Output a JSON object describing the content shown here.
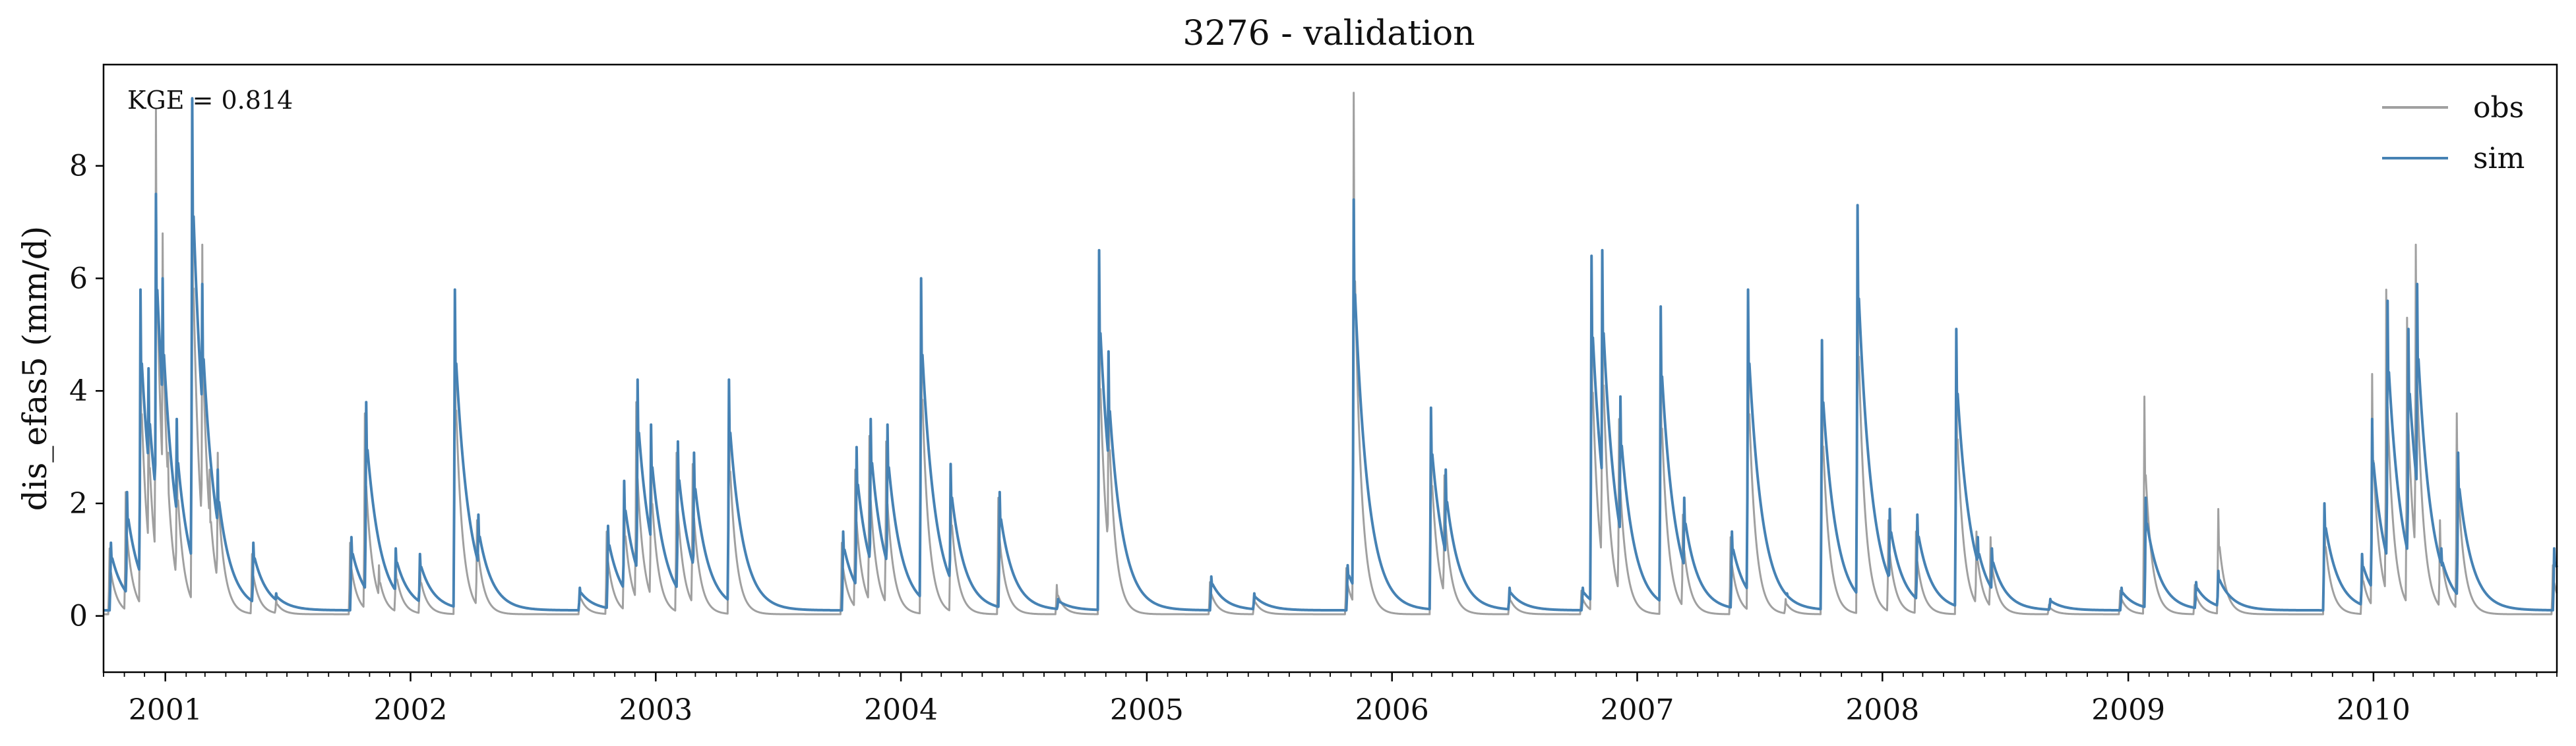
{
  "chart_data": {
    "type": "line",
    "title": "3276 - validation",
    "xlabel": "",
    "ylabel": "dis_efas5 (mm/d)",
    "annotation": "KGE = 0.814",
    "x_range": [
      "2000-10-01",
      "2010-10-01"
    ],
    "ylim": [
      -1.0,
      9.8
    ],
    "yticks": [
      0,
      2,
      4,
      6,
      8
    ],
    "xtick_labels": [
      "2001",
      "2002",
      "2003",
      "2004",
      "2005",
      "2006",
      "2007",
      "2008",
      "2009",
      "2010"
    ],
    "grid": false,
    "legend_position": "top-right",
    "baseline": 0.12,
    "series": [
      {
        "name": "obs",
        "color": "#a0a0a0",
        "baseline": 0.03,
        "recession_days": 10,
        "scale": 0.78,
        "events": [
          [
            "2000-10-10",
            1.2
          ],
          [
            "2000-11-03",
            2.2
          ],
          [
            "2000-11-25",
            5.6
          ],
          [
            "2000-12-07",
            4.1
          ],
          [
            "2000-12-18",
            9.0
          ],
          [
            "2000-12-28",
            6.8
          ],
          [
            "2001-01-05",
            2.9
          ],
          [
            "2001-01-18",
            3.2
          ],
          [
            "2001-02-10",
            9.1
          ],
          [
            "2001-02-25",
            6.6
          ],
          [
            "2001-03-08",
            2.6
          ],
          [
            "2001-03-20",
            2.9
          ],
          [
            "2001-05-10",
            1.1
          ],
          [
            "2001-06-15",
            0.3
          ],
          [
            "2001-10-03",
            1.3
          ],
          [
            "2001-10-25",
            3.6
          ],
          [
            "2001-11-15",
            0.9
          ],
          [
            "2001-12-10",
            1.0
          ],
          [
            "2002-01-15",
            0.9
          ],
          [
            "2002-03-08",
            5.7
          ],
          [
            "2002-04-10",
            1.7
          ],
          [
            "2002-09-10",
            0.45
          ],
          [
            "2002-10-20",
            1.5
          ],
          [
            "2002-11-15",
            2.2
          ],
          [
            "2002-12-03",
            3.8
          ],
          [
            "2002-12-25",
            3.1
          ],
          [
            "2003-02-01",
            2.9
          ],
          [
            "2003-02-25",
            2.7
          ],
          [
            "2003-04-20",
            4.0
          ],
          [
            "2003-10-05",
            1.3
          ],
          [
            "2003-10-25",
            2.6
          ],
          [
            "2003-11-15",
            3.2
          ],
          [
            "2003-12-10",
            3.1
          ],
          [
            "2004-01-31",
            6.0
          ],
          [
            "2004-03-15",
            2.5
          ],
          [
            "2004-05-25",
            2.1
          ],
          [
            "2004-08-20",
            0.55
          ],
          [
            "2004-10-22",
            6.3
          ],
          [
            "2004-11-05",
            4.6
          ],
          [
            "2005-04-05",
            0.6
          ],
          [
            "2005-06-10",
            0.35
          ],
          [
            "2005-10-25",
            0.85
          ],
          [
            "2005-11-05",
            9.3
          ],
          [
            "2006-02-28",
            3.6
          ],
          [
            "2006-03-20",
            2.5
          ],
          [
            "2006-06-25",
            0.4
          ],
          [
            "2006-10-10",
            0.45
          ],
          [
            "2006-10-25",
            6.2
          ],
          [
            "2006-11-10",
            6.4
          ],
          [
            "2006-12-05",
            3.5
          ],
          [
            "2007-02-05",
            5.2
          ],
          [
            "2007-03-10",
            1.8
          ],
          [
            "2007-05-20",
            1.4
          ],
          [
            "2007-06-15",
            5.6
          ],
          [
            "2007-08-10",
            0.3
          ],
          [
            "2007-10-03",
            4.7
          ],
          [
            "2007-11-25",
            7.2
          ],
          [
            "2008-01-10",
            1.7
          ],
          [
            "2008-02-20",
            1.5
          ],
          [
            "2008-04-20",
            4.9
          ],
          [
            "2008-05-20",
            1.5
          ],
          [
            "2008-06-10",
            1.4
          ],
          [
            "2008-09-05",
            0.2
          ],
          [
            "2008-12-20",
            0.45
          ],
          [
            "2009-01-25",
            3.9
          ],
          [
            "2009-04-10",
            0.55
          ],
          [
            "2009-05-15",
            1.9
          ],
          [
            "2009-10-20",
            1.9
          ],
          [
            "2009-12-15",
            0.95
          ],
          [
            "2009-12-30",
            4.3
          ],
          [
            "2010-01-20",
            5.8
          ],
          [
            "2010-02-20",
            5.3
          ],
          [
            "2010-03-05",
            6.6
          ],
          [
            "2010-04-10",
            1.7
          ],
          [
            "2010-05-05",
            3.6
          ],
          [
            "2010-09-25",
            0.9
          ]
        ]
      },
      {
        "name": "sim",
        "color": "#4682b4",
        "baseline": 0.1,
        "recession_days": 20,
        "scale": 0.85,
        "events": [
          [
            "2000-10-12",
            1.3
          ],
          [
            "2000-11-05",
            2.2
          ],
          [
            "2000-11-25",
            5.8
          ],
          [
            "2000-12-07",
            4.4
          ],
          [
            "2000-12-18",
            7.5
          ],
          [
            "2000-12-28",
            6.0
          ],
          [
            "2001-01-05",
            3.4
          ],
          [
            "2001-01-18",
            3.5
          ],
          [
            "2001-02-10",
            9.2
          ],
          [
            "2001-02-25",
            5.9
          ],
          [
            "2001-03-08",
            2.8
          ],
          [
            "2001-03-20",
            2.6
          ],
          [
            "2001-05-12",
            1.3
          ],
          [
            "2001-06-15",
            0.4
          ],
          [
            "2001-10-05",
            1.4
          ],
          [
            "2001-10-27",
            3.8
          ],
          [
            "2001-11-15",
            1.0
          ],
          [
            "2001-12-10",
            1.2
          ],
          [
            "2002-01-15",
            1.1
          ],
          [
            "2002-03-08",
            5.8
          ],
          [
            "2002-04-12",
            1.8
          ],
          [
            "2002-09-10",
            0.5
          ],
          [
            "2002-10-22",
            1.6
          ],
          [
            "2002-11-15",
            2.4
          ],
          [
            "2002-12-05",
            4.2
          ],
          [
            "2002-12-25",
            3.4
          ],
          [
            "2003-02-03",
            3.1
          ],
          [
            "2003-02-27",
            2.9
          ],
          [
            "2003-04-20",
            4.2
          ],
          [
            "2003-10-07",
            1.5
          ],
          [
            "2003-10-27",
            3.0
          ],
          [
            "2003-11-17",
            3.5
          ],
          [
            "2003-12-12",
            3.4
          ],
          [
            "2004-01-31",
            6.0
          ],
          [
            "2004-03-15",
            2.7
          ],
          [
            "2004-05-27",
            2.2
          ],
          [
            "2004-08-22",
            0.3
          ],
          [
            "2004-10-22",
            6.5
          ],
          [
            "2004-11-05",
            4.7
          ],
          [
            "2005-04-07",
            0.7
          ],
          [
            "2005-06-10",
            0.4
          ],
          [
            "2005-10-27",
            0.9
          ],
          [
            "2005-11-05",
            7.4
          ],
          [
            "2006-02-28",
            3.7
          ],
          [
            "2006-03-22",
            2.6
          ],
          [
            "2006-06-25",
            0.5
          ],
          [
            "2006-10-12",
            0.5
          ],
          [
            "2006-10-25",
            6.4
          ],
          [
            "2006-11-10",
            6.5
          ],
          [
            "2006-12-07",
            3.9
          ],
          [
            "2007-02-05",
            5.5
          ],
          [
            "2007-03-12",
            2.1
          ],
          [
            "2007-05-22",
            1.5
          ],
          [
            "2007-06-15",
            5.8
          ],
          [
            "2007-08-12",
            0.4
          ],
          [
            "2007-10-03",
            4.9
          ],
          [
            "2007-11-25",
            7.3
          ],
          [
            "2008-01-12",
            1.9
          ],
          [
            "2008-02-22",
            1.8
          ],
          [
            "2008-04-20",
            5.1
          ],
          [
            "2008-05-22",
            1.4
          ],
          [
            "2008-06-12",
            1.2
          ],
          [
            "2008-09-07",
            0.3
          ],
          [
            "2008-12-22",
            0.5
          ],
          [
            "2009-01-27",
            2.1
          ],
          [
            "2009-04-12",
            0.6
          ],
          [
            "2009-05-15",
            0.8
          ],
          [
            "2009-10-20",
            2.0
          ],
          [
            "2009-12-15",
            1.1
          ],
          [
            "2009-12-30",
            3.5
          ],
          [
            "2010-01-22",
            5.6
          ],
          [
            "2010-02-22",
            5.1
          ],
          [
            "2010-03-07",
            5.9
          ],
          [
            "2010-04-12",
            1.2
          ],
          [
            "2010-05-07",
            2.9
          ],
          [
            "2010-09-27",
            1.2
          ]
        ]
      }
    ]
  }
}
